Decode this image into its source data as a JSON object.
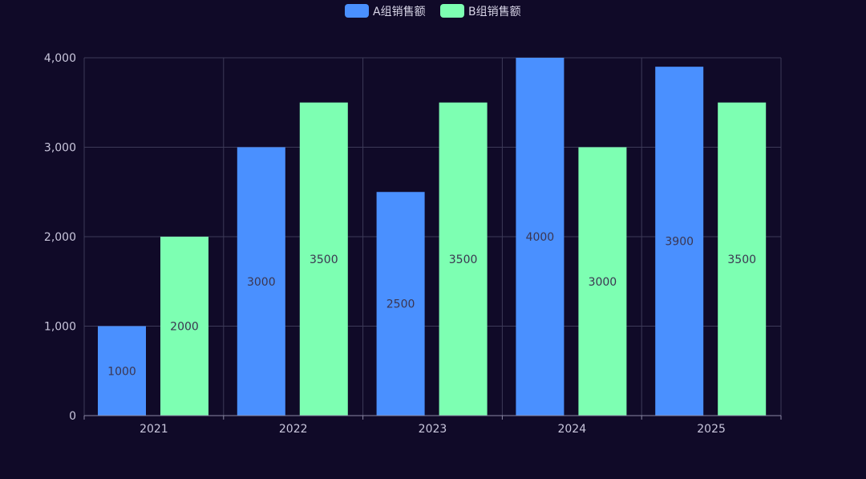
{
  "chart_data": {
    "type": "bar",
    "categories": [
      "2021",
      "2022",
      "2023",
      "2024",
      "2025"
    ],
    "series": [
      {
        "name": "A组销售额",
        "values": [
          1000,
          3000,
          2500,
          4000,
          3900
        ],
        "color": "#4a90ff"
      },
      {
        "name": "B组销售额",
        "values": [
          2000,
          3500,
          3500,
          3000,
          3500
        ],
        "color": "#7dffb2"
      }
    ],
    "ylim": [
      0,
      4000
    ],
    "yticks": [
      0,
      1000,
      2000,
      3000,
      4000
    ],
    "ytick_labels": [
      "0",
      "1,000",
      "2,000",
      "3,000",
      "4,000"
    ],
    "grid": true,
    "legend_position": "top-center",
    "title": "",
    "xlabel": "",
    "ylabel": ""
  },
  "colors": {
    "background": "#100a28",
    "grid": "#3d3a58",
    "axis": "#8a87a3"
  }
}
